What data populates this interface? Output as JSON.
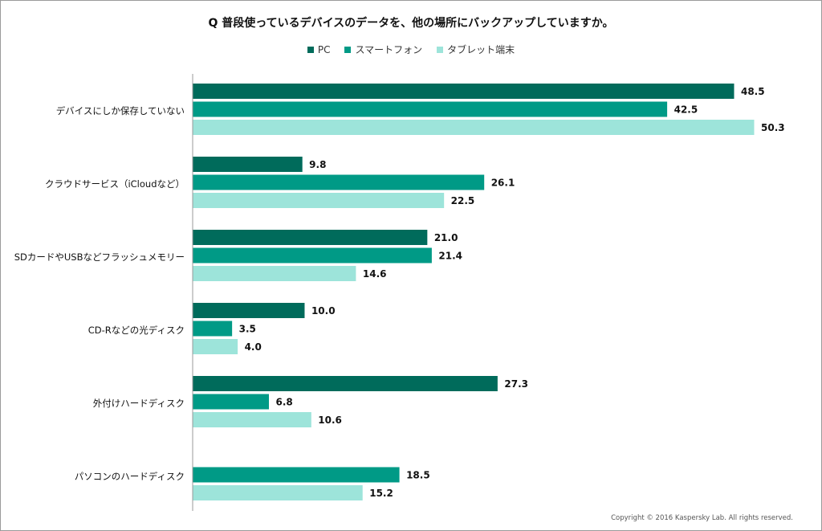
{
  "chart_data": {
    "type": "bar",
    "orientation": "horizontal",
    "title": "Q 普段使っているデバイスのデータを、他の場所にバックアップしていますか。",
    "categories": [
      "デバイスにしか保存していない",
      "クラウドサービス（iCloudなど）",
      "SDカードやUSBなどフラッシュメモリー",
      "CD-Rなどの光ディスク",
      "外付けハードディスク",
      "パソコンのハードディスク"
    ],
    "series": [
      {
        "name": "PC",
        "color": "#006b5b",
        "values": [
          48.5,
          9.8,
          21.0,
          10.0,
          27.3,
          null
        ],
        "labels": [
          "48.5",
          "9.8",
          "21.0",
          "10.0",
          "27.3",
          ""
        ]
      },
      {
        "name": "スマートフォン",
        "color": "#009a86",
        "values": [
          42.5,
          26.1,
          21.4,
          3.5,
          6.8,
          18.5
        ],
        "labels": [
          "42.5",
          "26.1",
          "21.4",
          "3.5",
          "6.8",
          "18.5"
        ]
      },
      {
        "name": "タブレット端末",
        "color": "#9de4da",
        "values": [
          50.3,
          22.5,
          14.6,
          4.0,
          10.6,
          15.2
        ],
        "labels": [
          "50.3",
          "22.5",
          "14.6",
          "4.0",
          "10.6",
          "15.2"
        ]
      }
    ],
    "xlim": [
      0,
      50.3
    ],
    "legend_position": "top-center",
    "grid": false
  },
  "footer": {
    "copyright": "Copyright © 2016 Kaspersky Lab. All rights reserved."
  }
}
